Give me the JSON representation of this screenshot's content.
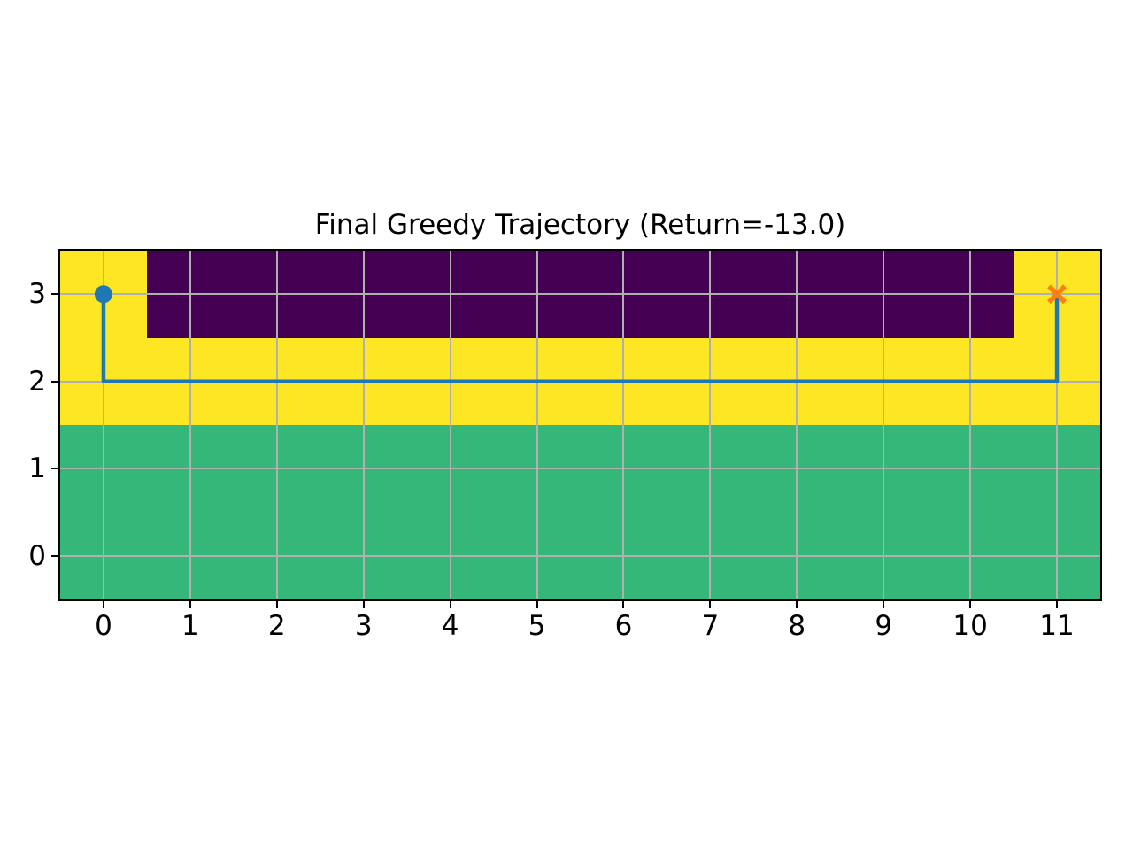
{
  "figure": {
    "background_color": "#ffffff",
    "spine_color": "#000000",
    "text_color": "#000000"
  },
  "chart_data": {
    "type": "heatmap",
    "title": "Final Greedy Trajectory (Return=-13.0)",
    "xlabel": "",
    "ylabel": "",
    "xlim": [
      -0.5,
      11.5
    ],
    "ylim": [
      -0.5,
      3.5
    ],
    "x_ticks": [
      0,
      1,
      2,
      3,
      4,
      5,
      6,
      7,
      8,
      9,
      10,
      11
    ],
    "y_ticks": [
      0,
      1,
      2,
      3
    ],
    "grid": true,
    "grid_color": "#b0b0b0",
    "grid_rows": 4,
    "grid_cols": 12,
    "legend": "none",
    "regions": [
      {
        "name": "upper-band-yellow",
        "x0": -0.5,
        "x1": 11.5,
        "y0": 1.5,
        "y1": 3.5,
        "color": "#fde725"
      },
      {
        "name": "wall-block-purple",
        "x0": 0.5,
        "x1": 10.5,
        "y0": 2.5,
        "y1": 3.5,
        "color": "#440154"
      },
      {
        "name": "lower-band-green",
        "x0": -0.5,
        "x1": 11.5,
        "y0": -0.5,
        "y1": 1.5,
        "color": "#35b779"
      }
    ],
    "trajectory": {
      "points": [
        [
          0,
          3
        ],
        [
          0,
          2
        ],
        [
          11,
          2
        ],
        [
          11,
          3
        ]
      ],
      "line_color": "#1f77b4",
      "start_marker": {
        "x": 0,
        "y": 3,
        "shape": "circle",
        "color": "#1f77b4"
      },
      "end_marker": {
        "x": 11,
        "y": 3,
        "shape": "x",
        "color": "#ff7f0e"
      }
    }
  }
}
